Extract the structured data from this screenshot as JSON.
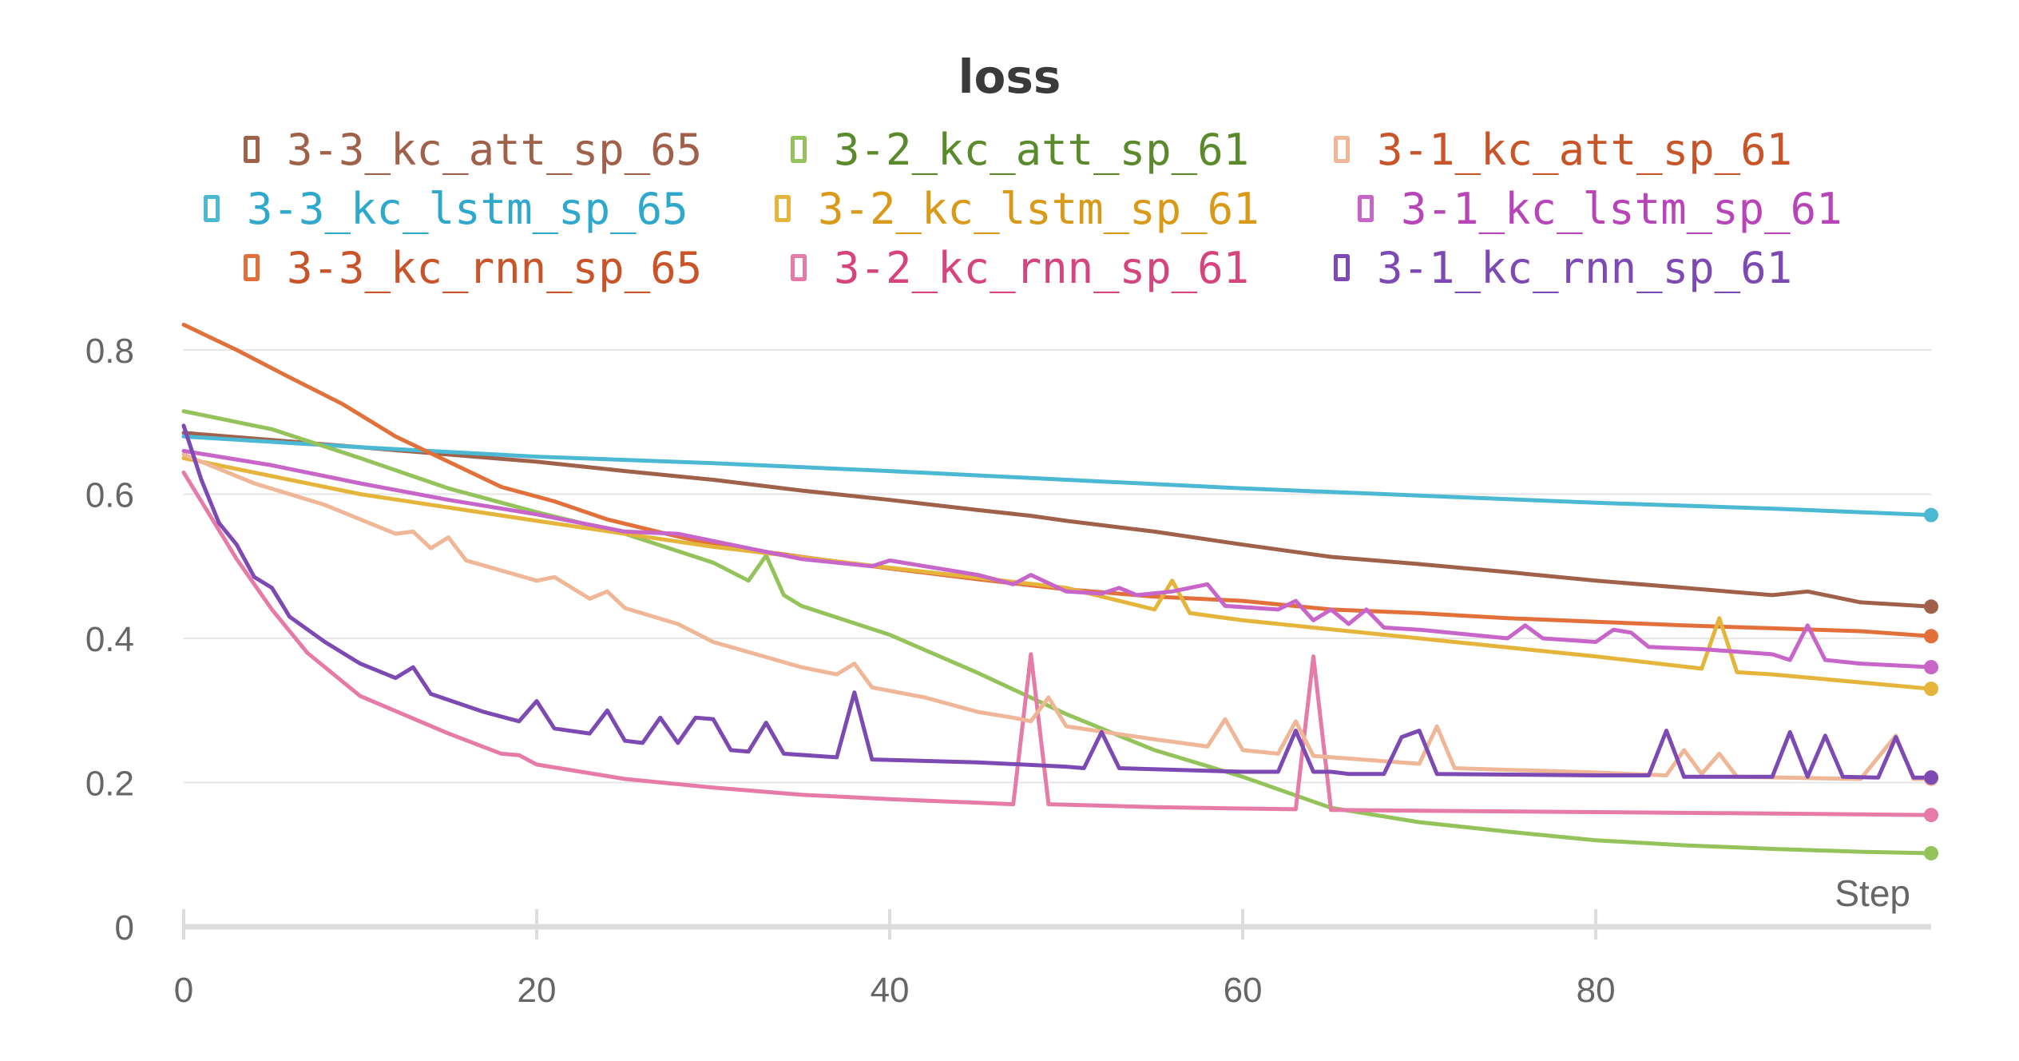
{
  "chart_data": {
    "type": "line",
    "title": "loss",
    "xlabel": "Step",
    "ylabel": "",
    "xlim": [
      0,
      99
    ],
    "ylim": [
      0,
      0.8
    ],
    "x_ticks": [
      "0",
      "20",
      "40",
      "60",
      "80"
    ],
    "y_ticks": [
      "0",
      "0.2",
      "0.4",
      "0.6",
      "0.8"
    ],
    "grid": true,
    "legend_position": "top",
    "series": [
      {
        "name": "3-3_kc_att_sp_65",
        "color": "#a0614a",
        "text_color": "#a0614a",
        "keys": [
          [
            0,
            0.685
          ],
          [
            5,
            0.675
          ],
          [
            10,
            0.665
          ],
          [
            15,
            0.655
          ],
          [
            20,
            0.645
          ],
          [
            25,
            0.632
          ],
          [
            30,
            0.62
          ],
          [
            35,
            0.605
          ],
          [
            40,
            0.592
          ],
          [
            45,
            0.578
          ],
          [
            48,
            0.57
          ],
          [
            50,
            0.563
          ],
          [
            55,
            0.548
          ],
          [
            60,
            0.53
          ],
          [
            65,
            0.513
          ],
          [
            70,
            0.503
          ],
          [
            75,
            0.492
          ],
          [
            80,
            0.48
          ],
          [
            85,
            0.47
          ],
          [
            90,
            0.46
          ],
          [
            92,
            0.465
          ],
          [
            95,
            0.45
          ],
          [
            99,
            0.444
          ]
        ]
      },
      {
        "name": "3-3_kc_lstm_sp_65",
        "color": "#4bb8d4",
        "text_color": "#2ea8cb",
        "keys": [
          [
            0,
            0.68
          ],
          [
            10,
            0.665
          ],
          [
            20,
            0.652
          ],
          [
            30,
            0.643
          ],
          [
            40,
            0.632
          ],
          [
            50,
            0.62
          ],
          [
            60,
            0.608
          ],
          [
            70,
            0.598
          ],
          [
            80,
            0.588
          ],
          [
            90,
            0.58
          ],
          [
            99,
            0.571
          ]
        ]
      },
      {
        "name": "3-3_kc_rnn_sp_65",
        "color": "#e2703a",
        "text_color": "#c8552a",
        "keys": [
          [
            0,
            0.835
          ],
          [
            3,
            0.8
          ],
          [
            6,
            0.762
          ],
          [
            9,
            0.725
          ],
          [
            12,
            0.68
          ],
          [
            15,
            0.645
          ],
          [
            18,
            0.61
          ],
          [
            21,
            0.59
          ],
          [
            24,
            0.565
          ],
          [
            27,
            0.547
          ],
          [
            30,
            0.53
          ],
          [
            35,
            0.513
          ],
          [
            40,
            0.497
          ],
          [
            45,
            0.482
          ],
          [
            50,
            0.468
          ],
          [
            55,
            0.458
          ],
          [
            60,
            0.452
          ],
          [
            65,
            0.44
          ],
          [
            70,
            0.435
          ],
          [
            75,
            0.428
          ],
          [
            80,
            0.423
          ],
          [
            85,
            0.418
          ],
          [
            90,
            0.414
          ],
          [
            95,
            0.41
          ],
          [
            99,
            0.403
          ]
        ]
      },
      {
        "name": "3-2_kc_att_sp_61",
        "color": "#93c35a",
        "text_color": "#5a8a2c",
        "keys": [
          [
            0,
            0.715
          ],
          [
            5,
            0.69
          ],
          [
            10,
            0.65
          ],
          [
            15,
            0.608
          ],
          [
            20,
            0.575
          ],
          [
            25,
            0.545
          ],
          [
            30,
            0.505
          ],
          [
            32,
            0.48
          ],
          [
            33,
            0.515
          ],
          [
            34,
            0.46
          ],
          [
            35,
            0.445
          ],
          [
            40,
            0.405
          ],
          [
            45,
            0.352
          ],
          [
            50,
            0.295
          ],
          [
            55,
            0.245
          ],
          [
            60,
            0.208
          ],
          [
            65,
            0.165
          ],
          [
            70,
            0.145
          ],
          [
            75,
            0.132
          ],
          [
            80,
            0.12
          ],
          [
            85,
            0.113
          ],
          [
            90,
            0.108
          ],
          [
            95,
            0.104
          ],
          [
            99,
            0.102
          ]
        ]
      },
      {
        "name": "3-2_kc_lstm_sp_61",
        "color": "#e5b43a",
        "text_color": "#d99a1a",
        "keys": [
          [
            0,
            0.65
          ],
          [
            10,
            0.6
          ],
          [
            20,
            0.563
          ],
          [
            30,
            0.527
          ],
          [
            40,
            0.498
          ],
          [
            50,
            0.47
          ],
          [
            55,
            0.44
          ],
          [
            56,
            0.48
          ],
          [
            57,
            0.435
          ],
          [
            60,
            0.425
          ],
          [
            70,
            0.4
          ],
          [
            80,
            0.375
          ],
          [
            86,
            0.358
          ],
          [
            87,
            0.428
          ],
          [
            88,
            0.353
          ],
          [
            90,
            0.35
          ],
          [
            99,
            0.33
          ]
        ]
      },
      {
        "name": "3-2_kc_rnn_sp_61",
        "color": "#e57ba6",
        "text_color": "#d6447e",
        "keys": [
          [
            0,
            0.63
          ],
          [
            1,
            0.59
          ],
          [
            3,
            0.51
          ],
          [
            5,
            0.44
          ],
          [
            7,
            0.38
          ],
          [
            10,
            0.32
          ],
          [
            15,
            0.268
          ],
          [
            18,
            0.24
          ],
          [
            19,
            0.238
          ],
          [
            20,
            0.225
          ],
          [
            25,
            0.205
          ],
          [
            30,
            0.193
          ],
          [
            35,
            0.183
          ],
          [
            40,
            0.177
          ],
          [
            45,
            0.172
          ],
          [
            47,
            0.17
          ],
          [
            48,
            0.378
          ],
          [
            49,
            0.17
          ],
          [
            55,
            0.166
          ],
          [
            60,
            0.164
          ],
          [
            63,
            0.163
          ],
          [
            64,
            0.375
          ],
          [
            65,
            0.162
          ],
          [
            70,
            0.161
          ],
          [
            80,
            0.159
          ],
          [
            90,
            0.157
          ],
          [
            99,
            0.155
          ]
        ]
      },
      {
        "name": "3-1_kc_att_sp_61",
        "color": "#efb797",
        "text_color": "#c8552a",
        "keys": [
          [
            0,
            0.655
          ],
          [
            4,
            0.615
          ],
          [
            8,
            0.585
          ],
          [
            12,
            0.545
          ],
          [
            13,
            0.548
          ],
          [
            14,
            0.525
          ],
          [
            15,
            0.54
          ],
          [
            16,
            0.508
          ],
          [
            20,
            0.48
          ],
          [
            21,
            0.485
          ],
          [
            23,
            0.455
          ],
          [
            24,
            0.465
          ],
          [
            25,
            0.442
          ],
          [
            28,
            0.42
          ],
          [
            30,
            0.395
          ],
          [
            35,
            0.36
          ],
          [
            37,
            0.35
          ],
          [
            38,
            0.365
          ],
          [
            39,
            0.332
          ],
          [
            42,
            0.318
          ],
          [
            45,
            0.298
          ],
          [
            47,
            0.29
          ],
          [
            48,
            0.285
          ],
          [
            49,
            0.318
          ],
          [
            50,
            0.278
          ],
          [
            55,
            0.26
          ],
          [
            58,
            0.25
          ],
          [
            59,
            0.288
          ],
          [
            60,
            0.245
          ],
          [
            62,
            0.24
          ],
          [
            63,
            0.285
          ],
          [
            64,
            0.237
          ],
          [
            70,
            0.226
          ],
          [
            71,
            0.278
          ],
          [
            72,
            0.22
          ],
          [
            80,
            0.214
          ],
          [
            84,
            0.21
          ],
          [
            85,
            0.245
          ],
          [
            86,
            0.212
          ],
          [
            87,
            0.24
          ],
          [
            88,
            0.208
          ],
          [
            95,
            0.205
          ],
          [
            97,
            0.265
          ],
          [
            98,
            0.205
          ],
          [
            99,
            0.205
          ]
        ]
      },
      {
        "name": "3-1_kc_lstm_sp_61",
        "color": "#c865c8",
        "text_color": "#b845b8",
        "keys": [
          [
            0,
            0.66
          ],
          [
            5,
            0.64
          ],
          [
            10,
            0.615
          ],
          [
            15,
            0.592
          ],
          [
            20,
            0.572
          ],
          [
            25,
            0.548
          ],
          [
            28,
            0.545
          ],
          [
            30,
            0.535
          ],
          [
            35,
            0.51
          ],
          [
            39,
            0.5
          ],
          [
            40,
            0.508
          ],
          [
            45,
            0.488
          ],
          [
            47,
            0.475
          ],
          [
            48,
            0.488
          ],
          [
            50,
            0.465
          ],
          [
            52,
            0.462
          ],
          [
            53,
            0.47
          ],
          [
            54,
            0.46
          ],
          [
            56,
            0.465
          ],
          [
            58,
            0.475
          ],
          [
            59,
            0.445
          ],
          [
            62,
            0.44
          ],
          [
            63,
            0.452
          ],
          [
            64,
            0.425
          ],
          [
            65,
            0.44
          ],
          [
            66,
            0.42
          ],
          [
            67,
            0.44
          ],
          [
            68,
            0.415
          ],
          [
            70,
            0.412
          ],
          [
            75,
            0.4
          ],
          [
            76,
            0.418
          ],
          [
            77,
            0.4
          ],
          [
            80,
            0.395
          ],
          [
            81,
            0.412
          ],
          [
            82,
            0.408
          ],
          [
            83,
            0.388
          ],
          [
            86,
            0.385
          ],
          [
            90,
            0.378
          ],
          [
            91,
            0.37
          ],
          [
            92,
            0.418
          ],
          [
            93,
            0.37
          ],
          [
            95,
            0.365
          ],
          [
            99,
            0.36
          ]
        ]
      },
      {
        "name": "3-1_kc_rnn_sp_61",
        "color": "#7d4ab3",
        "text_color": "#7d4ab3",
        "keys": [
          [
            0,
            0.695
          ],
          [
            1,
            0.62
          ],
          [
            2,
            0.56
          ],
          [
            3,
            0.53
          ],
          [
            4,
            0.485
          ],
          [
            5,
            0.47
          ],
          [
            6,
            0.43
          ],
          [
            8,
            0.395
          ],
          [
            10,
            0.365
          ],
          [
            12,
            0.345
          ],
          [
            13,
            0.36
          ],
          [
            14,
            0.323
          ],
          [
            17,
            0.298
          ],
          [
            19,
            0.285
          ],
          [
            20,
            0.313
          ],
          [
            21,
            0.275
          ],
          [
            23,
            0.268
          ],
          [
            24,
            0.3
          ],
          [
            25,
            0.258
          ],
          [
            26,
            0.255
          ],
          [
            27,
            0.29
          ],
          [
            28,
            0.255
          ],
          [
            29,
            0.29
          ],
          [
            30,
            0.288
          ],
          [
            31,
            0.245
          ],
          [
            32,
            0.243
          ],
          [
            33,
            0.283
          ],
          [
            34,
            0.24
          ],
          [
            37,
            0.235
          ],
          [
            38,
            0.325
          ],
          [
            39,
            0.232
          ],
          [
            45,
            0.228
          ],
          [
            50,
            0.222
          ],
          [
            51,
            0.22
          ],
          [
            52,
            0.27
          ],
          [
            53,
            0.22
          ],
          [
            60,
            0.215
          ],
          [
            62,
            0.215
          ],
          [
            63,
            0.272
          ],
          [
            64,
            0.215
          ],
          [
            65,
            0.215
          ],
          [
            66,
            0.212
          ],
          [
            67,
            0.212
          ],
          [
            68,
            0.212
          ],
          [
            69,
            0.263
          ],
          [
            70,
            0.272
          ],
          [
            71,
            0.212
          ],
          [
            80,
            0.21
          ],
          [
            83,
            0.21
          ],
          [
            84,
            0.272
          ],
          [
            85,
            0.208
          ],
          [
            90,
            0.208
          ],
          [
            91,
            0.27
          ],
          [
            92,
            0.208
          ],
          [
            93,
            0.265
          ],
          [
            94,
            0.208
          ],
          [
            96,
            0.207
          ],
          [
            97,
            0.263
          ],
          [
            98,
            0.207
          ],
          [
            99,
            0.207
          ]
        ]
      }
    ]
  }
}
